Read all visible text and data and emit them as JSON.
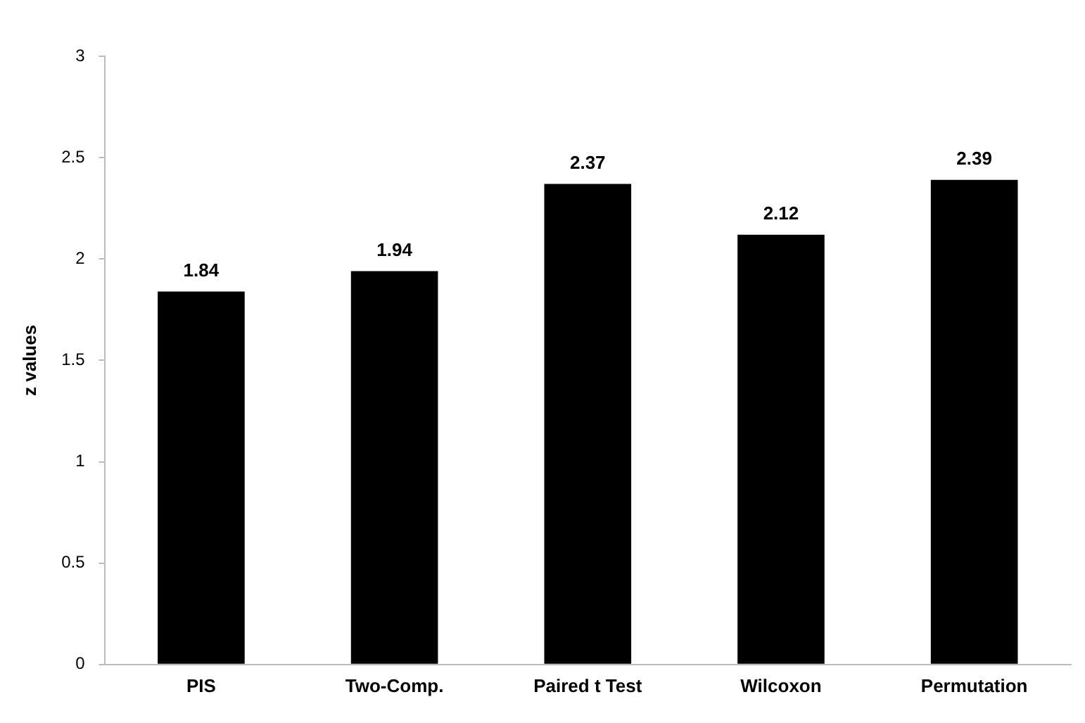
{
  "chart_data": {
    "type": "bar",
    "ylabel": "z values",
    "categories": [
      "PIS",
      "Two-Comp.",
      "Paired t Test",
      "Wilcoxon",
      "Permutation"
    ],
    "values": [
      1.84,
      1.94,
      2.37,
      2.12,
      2.39
    ],
    "color": "#000000",
    "ylim": [
      0,
      3
    ],
    "yticks": [
      0,
      0.5,
      1,
      1.5,
      2,
      2.5,
      3
    ],
    "grid": false,
    "legend": false,
    "data_labels": true
  }
}
